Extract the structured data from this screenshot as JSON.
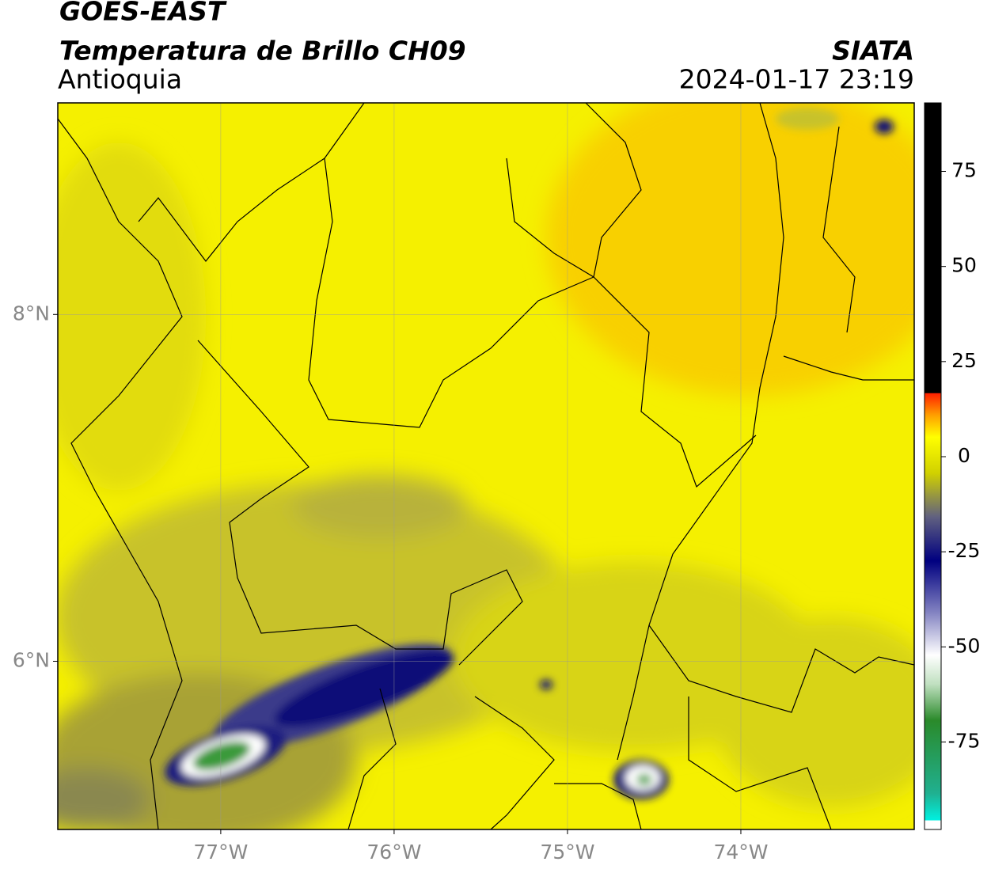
{
  "header": {
    "title": "GOES-EAST",
    "subtitle": "Temperatura de Brillo CH09",
    "region": "Antioquia",
    "source": "SIATA",
    "timestamp": "2024-01-17 23:19"
  },
  "map": {
    "xlim": [
      -77.94,
      -73.0
    ],
    "ylim": [
      5.03,
      9.22
    ],
    "xticks": [
      {
        "value": -77,
        "label": "77°W"
      },
      {
        "value": -76,
        "label": "76°W"
      },
      {
        "value": -75,
        "label": "75°W"
      },
      {
        "value": -74,
        "label": "74°W"
      }
    ],
    "yticks": [
      {
        "value": 8,
        "label": "8°N"
      },
      {
        "value": 6,
        "label": "6°N"
      }
    ],
    "grid": true
  },
  "colorbar": {
    "lim": [
      -98,
      93
    ],
    "ticks": [
      75,
      50,
      25,
      0,
      -25,
      -50,
      -75
    ]
  }
}
